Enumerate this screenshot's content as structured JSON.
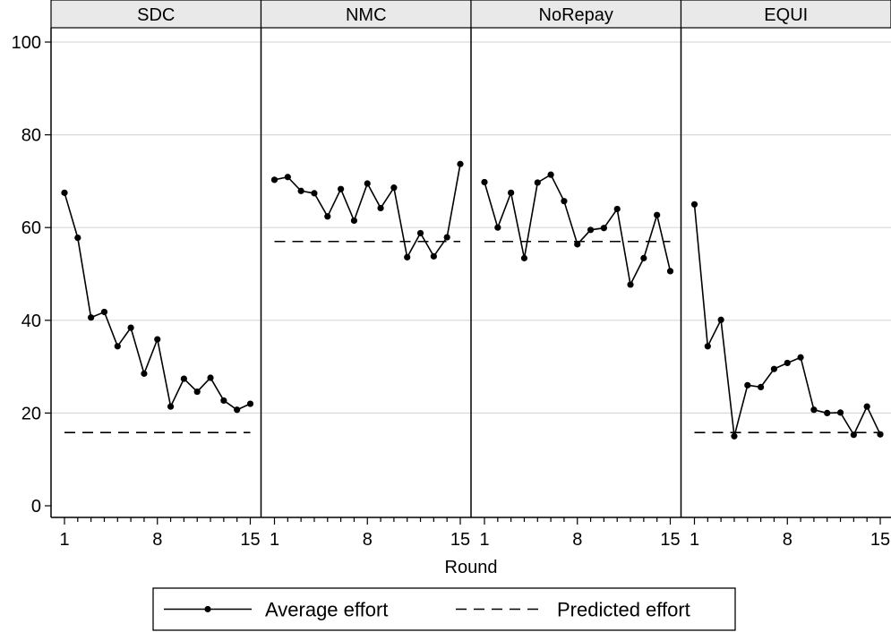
{
  "chart_data": {
    "type": "line",
    "xlabel": "Round",
    "ylabel": "",
    "ylim": [
      0,
      100
    ],
    "yticks": [
      0,
      20,
      40,
      60,
      80,
      100
    ],
    "xlim": [
      1,
      15
    ],
    "xticks_labeled": [
      1,
      8,
      15
    ],
    "xticks_minor": [
      1,
      2,
      3,
      4,
      5,
      6,
      7,
      8,
      9,
      10,
      11,
      12,
      13,
      14,
      15
    ],
    "grid": "horizontal",
    "legend_position": "bottom",
    "legend": [
      {
        "label": "Average effort",
        "style": "solid-with-markers"
      },
      {
        "label": "Predicted effort",
        "style": "dashed"
      }
    ],
    "panels": [
      {
        "name": "SDC",
        "predicted": 15.8,
        "x": [
          1,
          2,
          3,
          4,
          5,
          6,
          7,
          8,
          9,
          10,
          11,
          12,
          13,
          14,
          15
        ],
        "average_effort": [
          67.5,
          57.8,
          40.6,
          41.8,
          34.4,
          38.4,
          28.5,
          35.9,
          21.4,
          27.4,
          24.6,
          27.6,
          22.7,
          20.7,
          22.0
        ]
      },
      {
        "name": "NMC",
        "predicted": 57.0,
        "x": [
          1,
          2,
          3,
          4,
          5,
          6,
          7,
          8,
          9,
          10,
          11,
          12,
          13,
          14,
          15
        ],
        "average_effort": [
          70.3,
          70.9,
          67.9,
          67.4,
          62.4,
          68.3,
          61.5,
          69.5,
          64.2,
          68.6,
          53.6,
          58.8,
          53.8,
          57.9,
          73.7
        ]
      },
      {
        "name": "NoRepay",
        "predicted": 57.0,
        "x": [
          1,
          2,
          3,
          4,
          5,
          6,
          7,
          8,
          9,
          10,
          11,
          12,
          13,
          14,
          15
        ],
        "average_effort": [
          69.8,
          60.0,
          67.5,
          53.4,
          69.7,
          71.4,
          65.7,
          56.4,
          59.5,
          59.9,
          64.0,
          47.7,
          53.4,
          62.7,
          50.6
        ]
      },
      {
        "name": "EQUI",
        "predicted": 15.8,
        "x": [
          1,
          2,
          3,
          4,
          5,
          6,
          7,
          8,
          9,
          10,
          11,
          12,
          13,
          14,
          15
        ],
        "average_effort": [
          65.0,
          34.4,
          40.1,
          15.0,
          26.0,
          25.6,
          29.5,
          30.8,
          32.0,
          20.7,
          20.0,
          20.1,
          15.3,
          21.4,
          15.4
        ]
      }
    ]
  }
}
